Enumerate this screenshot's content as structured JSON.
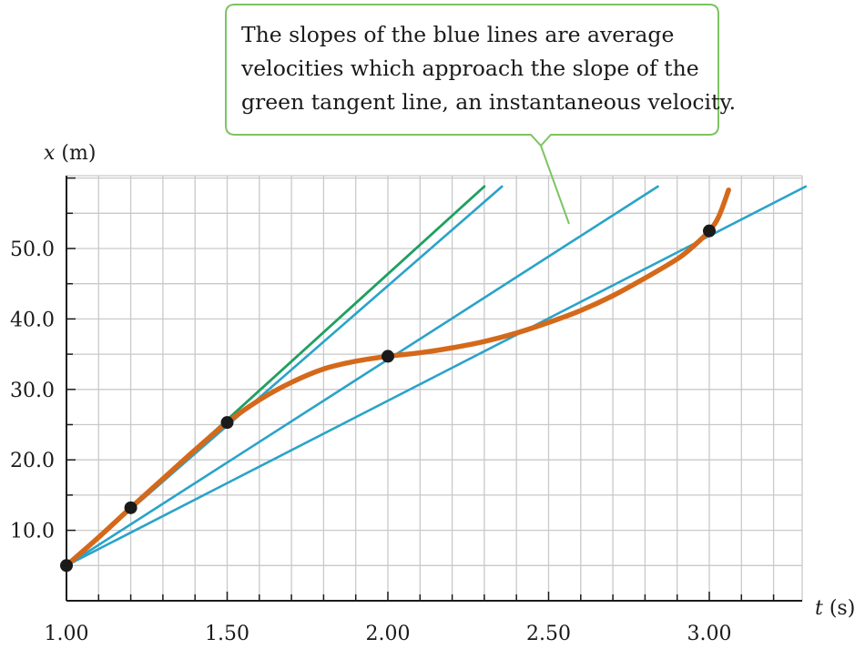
{
  "chart_data": {
    "type": "line",
    "xlabel": {
      "var": "t",
      "unit": " (s)"
    },
    "ylabel": {
      "var": "x",
      "unit": " (m)"
    },
    "xlim": [
      1.0,
      3.3
    ],
    "ylim": [
      0,
      60
    ],
    "x_ticks": [
      {
        "value": 1.0,
        "label": "1.00"
      },
      {
        "value": 1.5,
        "label": "1.50"
      },
      {
        "value": 2.0,
        "label": "2.00"
      },
      {
        "value": 2.5,
        "label": "2.50"
      },
      {
        "value": 3.0,
        "label": "3.00"
      }
    ],
    "y_ticks": [
      {
        "value": 10,
        "label": "10.0"
      },
      {
        "value": 20,
        "label": "20.0"
      },
      {
        "value": 30,
        "label": "30.0"
      },
      {
        "value": 40,
        "label": "40.0"
      },
      {
        "value": 50,
        "label": "50.0"
      }
    ],
    "grid": true,
    "curve": {
      "color": "#d4691b",
      "points": [
        [
          1.0,
          5.0
        ],
        [
          1.1,
          9.0
        ],
        [
          1.2,
          13.2
        ],
        [
          1.3,
          17.3
        ],
        [
          1.4,
          21.4
        ],
        [
          1.5,
          25.3
        ],
        [
          1.6,
          28.5
        ],
        [
          1.7,
          31.0
        ],
        [
          1.8,
          32.9
        ],
        [
          1.9,
          34.0
        ],
        [
          2.0,
          34.7
        ],
        [
          2.1,
          35.2
        ],
        [
          2.2,
          35.9
        ],
        [
          2.3,
          36.8
        ],
        [
          2.4,
          38.0
        ],
        [
          2.5,
          39.5
        ],
        [
          2.6,
          41.2
        ],
        [
          2.7,
          43.3
        ],
        [
          2.8,
          45.8
        ],
        [
          2.9,
          48.5
        ],
        [
          2.95,
          50.3
        ],
        [
          3.0,
          52.5
        ],
        [
          3.03,
          54.6
        ],
        [
          3.06,
          58.3
        ]
      ]
    },
    "data_points": [
      {
        "t": 1.0,
        "x": 5.0
      },
      {
        "t": 1.2,
        "x": 13.2
      },
      {
        "t": 1.5,
        "x": 25.3
      },
      {
        "t": 2.0,
        "x": 34.7
      },
      {
        "t": 3.0,
        "x": 52.5
      }
    ],
    "blue_lines": {
      "color": "#2aa3c9",
      "lines": [
        {
          "from": [
            1.0,
            5.0
          ],
          "to": [
            2.355,
            58.8
          ]
        },
        {
          "from": [
            1.0,
            5.0
          ],
          "to": [
            2.84,
            58.8
          ]
        },
        {
          "from": [
            1.0,
            5.0
          ],
          "to": [
            3.3,
            58.8
          ]
        }
      ]
    },
    "tangent_line": {
      "color": "#1ea060",
      "from": [
        1.0,
        5.0
      ],
      "to": [
        2.3,
        58.8
      ]
    },
    "annotation": {
      "lines": [
        "The slopes of the blue lines are average",
        "velocities which approach the slope of the",
        "green tangent line, an instantaneous velocity."
      ],
      "border_color": "#7dc462"
    },
    "colors": {
      "background": "#ffffff",
      "grid": "#c9c9c9",
      "axis": "#1a1a1a",
      "point": "#1a1a1a"
    }
  }
}
